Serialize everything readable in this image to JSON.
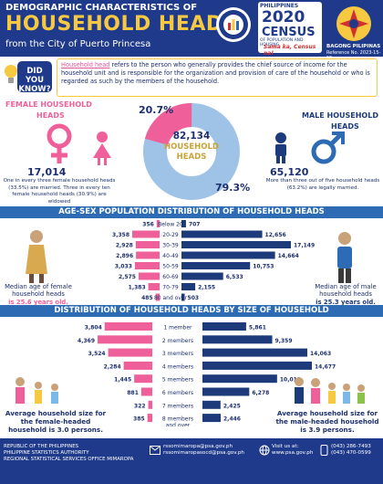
{
  "header": {
    "line1": "DEMOGRAPHIC CHARACTERISTICS OF",
    "line2": "HOUSEHOLD HEADS",
    "line3": "from the City of Puerto Princesa",
    "census_logo": {
      "brand": "PHILIPPINES",
      "year": "2020",
      "word": "CENSUS",
      "sub": "OF POPULATION AND HOUSING",
      "tagline": "Sama ka, Census na!"
    },
    "bagong_pilipinas": "BAGONG PILIPINAS",
    "reference": "Reference No. 2023-15-55"
  },
  "did_you_know": {
    "badge_line1": "DID YOU",
    "badge_line2": "KNOW?",
    "highlight": "Household head",
    "text": " refers to the person who generally provides the chief source of income for the household unit and is responsible for the organization and provision of care of the household or who is regarded as such by the members of the household."
  },
  "female": {
    "title_line1": "FEMALE HOUSEHOLD",
    "title_line2": "HEADS",
    "count": "17,014",
    "note": "One in every three female household heads (33.5%) are married. Three in every ten female household heads (30.9%) are widowed",
    "median_label": "Median age of female household heads",
    "median_value": "is 25.6 years old."
  },
  "male": {
    "title_line1": "MALE HOUSEHOLD",
    "title_line2": "HEADS",
    "count": "65,120",
    "note": "More than three out of five household heads (63.2%) are legally married.",
    "median_label": "Median age of male household heads",
    "median_value": "is 25.3 years old."
  },
  "donut": {
    "total": "82,134",
    "label1": "HOUSEHOLD",
    "label2": "HEADS",
    "female_pct_label": "20.7%",
    "male_pct_label": "79.3%"
  },
  "age_section": {
    "title": "AGE-SEX POPULATION DISTRIBUTION OF HOUSEHOLD HEADS"
  },
  "size_section": {
    "title": "DISTRIBUTION OF HOUSEHOLD HEADS BY SIZE OF HOUSEHOLD"
  },
  "household_size_notes": {
    "female": "Average household size for the female-headed household is 3.0 persons.",
    "male": "Average household size for the male-headed household is 3.9 persons."
  },
  "footer": {
    "org1": "REPUBLIC OF THE PHILIPPINES",
    "org2": "PHILIPPINE STATISTICS AUTHORITY",
    "org3": "REGIONAL STATISTICAL SERVICES OFFICE MIMAROPA",
    "email1": "rssomimaropa@psa.gov.ph",
    "email2": "rssomimaropasocd@psa.gov.ph",
    "web_label": "Visit us at:",
    "web": "www.psa.gov.ph",
    "phone1": "(043) 286-7493",
    "phone2": "(043) 470-0599"
  },
  "colors": {
    "female": "#ef5f9a",
    "male": "#1d3a7a",
    "ribbon": "#2d6cb4",
    "accent": "#f7c940",
    "navy": "#1f3a8a"
  },
  "chart_data": [
    {
      "type": "bar",
      "title": "AGE-SEX POPULATION DISTRIBUTION OF HOUSEHOLD HEADS",
      "categories": [
        "Below 20",
        "20-29",
        "30-39",
        "40-49",
        "50-59",
        "60-69",
        "70-79",
        "80 and over"
      ],
      "series": [
        {
          "values": [
            356,
            3358,
            2928,
            2896,
            3033,
            2575,
            1383,
            485
          ]
        },
        {
          "values": [
            707,
            12656,
            17149,
            14664,
            10753,
            6533,
            2155,
            503
          ]
        }
      ],
      "value_labels": {
        "female": [
          "356",
          "3,358",
          "2,928",
          "2,896",
          "3,033",
          "2,575",
          "1,383",
          "485"
        ],
        "male": [
          "707",
          "12,656",
          "17,149",
          "14,664",
          "10,753",
          "6,533",
          "2,155",
          "503"
        ]
      },
      "xlim": [
        0,
        17149
      ]
    },
    {
      "type": "bar",
      "title": "DISTRIBUTION OF HOUSEHOLD HEADS BY SIZE OF HOUSEHOLD",
      "categories": [
        "1 member",
        "2 members",
        "3 members",
        "4 members",
        "5 members",
        "6 members",
        "7 members",
        "8 members and over"
      ],
      "series": [
        {
          "values": [
            3804,
            4369,
            3524,
            2284,
            1445,
            881,
            322,
            385
          ]
        },
        {
          "values": [
            5861,
            9359,
            14063,
            14677,
            10011,
            6278,
            2425,
            2446
          ]
        }
      ],
      "value_labels": {
        "female": [
          "3,804",
          "4,369",
          "3,524",
          "2,284",
          "1,445",
          "881",
          "322",
          "385"
        ],
        "male": [
          "5,861",
          "9,359",
          "14,063",
          "14,677",
          "10,011",
          "6,278",
          "2,425",
          "2,446"
        ]
      },
      "xlim": [
        0,
        14677
      ]
    },
    {
      "type": "pie",
      "categories": [
        "Female",
        "Male"
      ],
      "values": [
        20.7,
        79.3
      ]
    }
  ]
}
